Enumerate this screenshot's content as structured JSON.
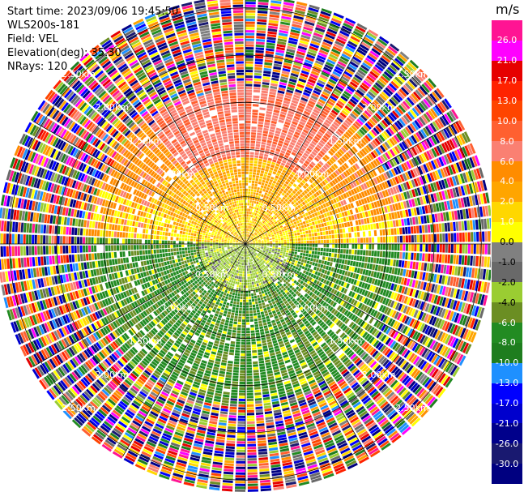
{
  "header": {
    "start_time": "Start time: 2023/09/06 19:45:50",
    "instrument": "WLS200s-181",
    "field": "Field: VEL",
    "elevation": "Elevation(deg): 35.30",
    "nrays": "NRays: 120"
  },
  "chart_data": {
    "type": "heatmap",
    "projection": "polar PPI",
    "center": [
      0,
      0
    ],
    "range_rings_km": [
      0.5,
      1.0,
      1.5,
      2.0,
      2.5
    ],
    "ring_labels": [
      "0.50km",
      "1.00km",
      "1.50km",
      "2.00km",
      "2.50km"
    ],
    "max_range_km": 2.6,
    "nrays": 120,
    "spokes_deg": [
      0,
      30,
      60,
      90,
      120,
      150,
      180,
      210,
      240,
      270,
      300,
      330
    ],
    "grid": true,
    "description_sectors": [
      {
        "azimuth_range_deg": [
          270,
          90
        ],
        "range_km": [
          0.0,
          1.6
        ],
        "dominant_velocity_ms": 2.0
      },
      {
        "azimuth_range_deg": [
          330,
          30
        ],
        "range_km": [
          0.9,
          1.6
        ],
        "dominant_velocity_ms": 6.0
      },
      {
        "azimuth_range_deg": [
          90,
          270
        ],
        "range_km": [
          0.0,
          1.6
        ],
        "dominant_velocity_ms": -5.0
      },
      {
        "azimuth_range_deg": [
          0,
          360
        ],
        "range_km": [
          1.6,
          2.6
        ],
        "dominant_velocity_ms": "noise"
      }
    ],
    "colorbar": {
      "unit": "m/s",
      "labels": [
        "26.0",
        "21.0",
        "17.0",
        "13.0",
        "10.0",
        "8.0",
        "6.0",
        "4.0",
        "2.0",
        "1.0",
        "0.0",
        "-1.0",
        "-2.0",
        "-4.0",
        "-6.0",
        "-8.0",
        "-10.0",
        "-13.0",
        "-17.0",
        "-21.0",
        "-26.0",
        "-30.0"
      ],
      "colors": [
        "#ff1493",
        "#ff00ff",
        "#e60000",
        "#ff2200",
        "#ff4500",
        "#ff6030",
        "#fa8072",
        "#ff8c00",
        "#ffa500",
        "#ffd700",
        "#ffff00",
        "#808080",
        "#696969",
        "#9acd32",
        "#6b8e23",
        "#228b22",
        "#1e7d1e",
        "#1e90ff",
        "#0000ff",
        "#0000cd",
        "#00008b",
        "#191970",
        "#000080"
      ]
    }
  }
}
